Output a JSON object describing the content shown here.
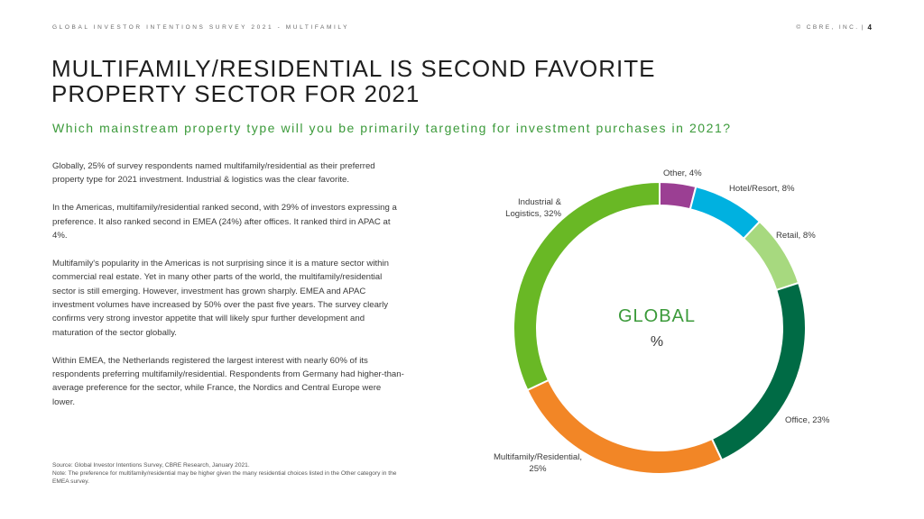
{
  "header": {
    "left": "GLOBAL INVESTOR INTENTIONS SURVEY 2021 - MULTIFAMILY",
    "right": "© CBRE, INC.",
    "separator": "|",
    "page": "4"
  },
  "title": {
    "line1": "MULTIFAMILY/RESIDENTIAL IS SECOND FAVORITE",
    "line2": "PROPERTY SECTOR FOR 2021"
  },
  "subtitle": "Which mainstream property type will you be primarily targeting for investment purchases in 2021?",
  "body": {
    "p1": "Globally, 25% of survey respondents named multifamily/residential as their preferred property type for 2021 investment. Industrial & logistics was the clear favorite.",
    "p2": "In the Americas, multifamily/residential ranked second, with 29% of investors expressing a preference. It also ranked second in EMEA (24%) after offices. It ranked third in APAC at 4%.",
    "p3": "Multifamily's popularity in the Americas is not surprising since it is a mature sector within commercial real estate. Yet in many other parts of the world, the multifamily/residential sector is still emerging. However, investment has grown sharply. EMEA and APAC investment volumes have increased by 50% over the past five years. The survey clearly confirms very strong investor appetite that will likely spur further development and maturation of the sector globally.",
    "p4": "Within EMEA, the Netherlands registered the largest interest with nearly 60% of its respondents preferring multifamily/residential. Respondents from Germany had higher-than-average preference for the sector, while France, the Nordics and Central Europe were lower."
  },
  "source": {
    "line1": "Source: Global Investor Intentions Survey, CBRE Research, January 2021.",
    "line2": "Note: The preference for multifamily/residential may be higher given the many residential choices listed in the Other category in the EMEA survey."
  },
  "chart_data": {
    "type": "pie",
    "title": "",
    "center_label": "GLOBAL",
    "center_unit": "%",
    "slices": [
      {
        "name": "Other",
        "value": 4,
        "label_lines": [
          "Other, 4%"
        ],
        "color": "#9b3f93"
      },
      {
        "name": "Hotel/Resort",
        "value": 8,
        "label_lines": [
          "Hotel/Resort, 8%"
        ],
        "color": "#00b1e0"
      },
      {
        "name": "Retail",
        "value": 8,
        "label_lines": [
          "Retail, 8%"
        ],
        "color": "#a7d97f"
      },
      {
        "name": "Office",
        "value": 23,
        "label_lines": [
          "Office, 23%"
        ],
        "color": "#006b45"
      },
      {
        "name": "Multifamily/Residential",
        "value": 25,
        "label_lines": [
          "Multifamily/Residential,",
          "25%"
        ],
        "color": "#f28626"
      },
      {
        "name": "Industrial & Logistics",
        "value": 32,
        "label_lines": [
          "Industrial &",
          "Logistics, 32%"
        ],
        "color": "#69b825"
      }
    ]
  },
  "colors": {
    "accent_green": "#3b9a3a",
    "text": "#3a3a3a"
  }
}
